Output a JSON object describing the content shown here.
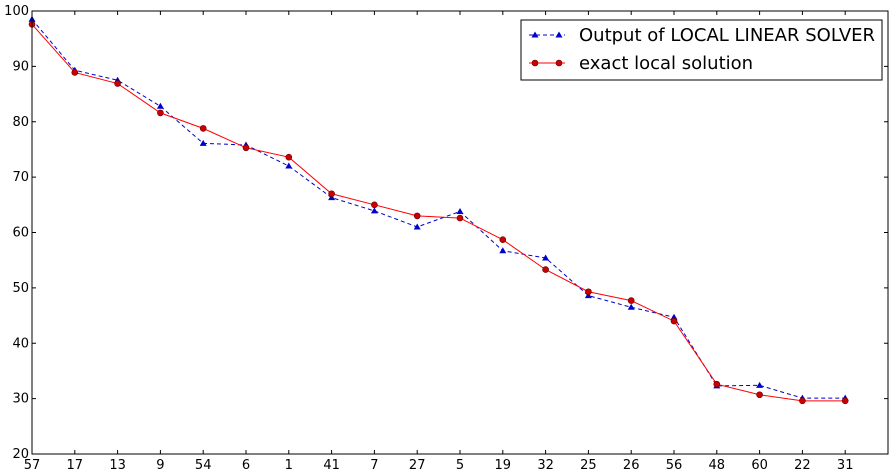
{
  "chart_data": {
    "type": "line",
    "categories": [
      "57",
      "17",
      "13",
      "9",
      "54",
      "6",
      "1",
      "41",
      "7",
      "27",
      "5",
      "19",
      "32",
      "25",
      "26",
      "56",
      "48",
      "60",
      "22",
      "31"
    ],
    "ylim": [
      20,
      100
    ],
    "yticks": [
      20,
      30,
      40,
      50,
      60,
      70,
      80,
      90,
      100
    ],
    "grid": false,
    "legend_position": "top-right",
    "series": [
      {
        "name": "Output of LOCAL LINEAR SOLVER",
        "color": "#0000cc",
        "linestyle": "dashed",
        "marker": "triangle",
        "values": [
          98.5,
          89.3,
          87.5,
          82.8,
          76.1,
          75.8,
          72.0,
          66.3,
          63.9,
          61.0,
          63.8,
          56.7,
          55.4,
          48.6,
          46.5,
          44.7,
          32.3,
          32.4,
          30.1,
          30.1
        ]
      },
      {
        "name": "exact local solution",
        "color": "#ff0000",
        "linestyle": "solid",
        "marker": "circle",
        "values": [
          97.6,
          88.9,
          86.9,
          81.6,
          78.8,
          75.3,
          73.6,
          67.0,
          65.0,
          63.0,
          62.6,
          58.7,
          53.3,
          49.3,
          47.7,
          44.0,
          32.6,
          30.7,
          29.6,
          29.6
        ]
      }
    ]
  }
}
